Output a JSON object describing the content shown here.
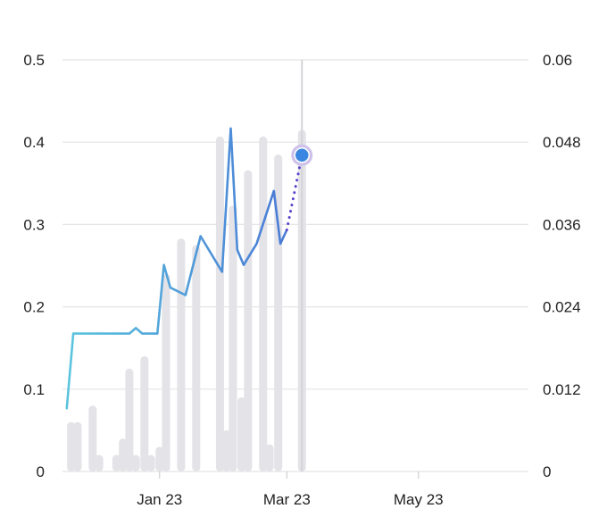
{
  "chart_data": {
    "type": "bar+line",
    "title": "",
    "xlabel": "",
    "ylabel": "",
    "y_left": {
      "ticks": [
        "0",
        "0.1",
        "0.2",
        "0.3",
        "0.4",
        "0.5"
      ],
      "range": [
        0,
        0.5
      ]
    },
    "y_right": {
      "ticks": [
        "0",
        "0.012",
        "0.024",
        "0.036",
        "0.048",
        "0.06"
      ],
      "range": [
        0,
        0.06
      ]
    },
    "x_ticks": [
      {
        "label": "Jan 23",
        "date": "2023-01-01"
      },
      {
        "label": "Mar 23",
        "date": "2023-03-01"
      },
      {
        "label": "May 23",
        "date": "2023-05-01"
      }
    ],
    "x_range": [
      "2022-11-17",
      "2023-06-21"
    ],
    "grid": true,
    "legend": "none",
    "colors": {
      "bars": "#e3e3e8",
      "line_start": "#5bc3de",
      "line_mid": "#4a7fd6",
      "line_end": "#5b3fcc",
      "highlight_point": "#3a86e0",
      "highlight_halo": "#cfc2ea",
      "cursor": "#d4d4d8",
      "grid": "#e4e4e4"
    },
    "bars_axis": "left",
    "bars": [
      {
        "date": "2022-11-21",
        "value": 0.06
      },
      {
        "date": "2022-11-24",
        "value": 0.06
      },
      {
        "date": "2022-12-01",
        "value": 0.08
      },
      {
        "date": "2022-12-04",
        "value": 0.02
      },
      {
        "date": "2022-12-12",
        "value": 0.02
      },
      {
        "date": "2022-12-15",
        "value": 0.04
      },
      {
        "date": "2022-12-18",
        "value": 0.125
      },
      {
        "date": "2022-12-21",
        "value": 0.02
      },
      {
        "date": "2022-12-25",
        "value": 0.14
      },
      {
        "date": "2022-12-28",
        "value": 0.02
      },
      {
        "date": "2023-01-01",
        "value": 0.03
      },
      {
        "date": "2023-01-04",
        "value": 0.24
      },
      {
        "date": "2023-01-11",
        "value": 0.283
      },
      {
        "date": "2023-01-18",
        "value": 0.275
      },
      {
        "date": "2023-01-29",
        "value": 0.407
      },
      {
        "date": "2023-02-01",
        "value": 0.05
      },
      {
        "date": "2023-02-04",
        "value": 0.323
      },
      {
        "date": "2023-02-08",
        "value": 0.09
      },
      {
        "date": "2023-02-11",
        "value": 0.366
      },
      {
        "date": "2023-02-18",
        "value": 0.407
      },
      {
        "date": "2023-02-21",
        "value": 0.033
      },
      {
        "date": "2023-02-25",
        "value": 0.385
      },
      {
        "date": "2023-03-08",
        "value": 0.415
      }
    ],
    "line_axis": "right",
    "line": [
      {
        "date": "2022-11-19",
        "value": 0.0092
      },
      {
        "date": "2022-11-22",
        "value": 0.0201
      },
      {
        "date": "2022-12-18",
        "value": 0.0201
      },
      {
        "date": "2022-12-21",
        "value": 0.0209
      },
      {
        "date": "2022-12-24",
        "value": 0.0201
      },
      {
        "date": "2022-12-31",
        "value": 0.0201
      },
      {
        "date": "2023-01-03",
        "value": 0.0301
      },
      {
        "date": "2023-01-06",
        "value": 0.0268
      },
      {
        "date": "2023-01-13",
        "value": 0.0257
      },
      {
        "date": "2023-01-20",
        "value": 0.0343
      },
      {
        "date": "2023-01-30",
        "value": 0.0291
      },
      {
        "date": "2023-02-03",
        "value": 0.05
      },
      {
        "date": "2023-02-06",
        "value": 0.0323
      },
      {
        "date": "2023-02-09",
        "value": 0.0301
      },
      {
        "date": "2023-02-15",
        "value": 0.0332
      },
      {
        "date": "2023-02-23",
        "value": 0.0409
      },
      {
        "date": "2023-02-26",
        "value": 0.0332
      },
      {
        "date": "2023-03-01",
        "value": 0.0352
      }
    ],
    "projected_line": [
      {
        "date": "2023-03-01",
        "value": 0.0352
      },
      {
        "date": "2023-03-08",
        "value": 0.0461
      }
    ],
    "highlight": {
      "date": "2023-03-08",
      "value": 0.0461
    },
    "cursor_date": "2023-03-08"
  }
}
